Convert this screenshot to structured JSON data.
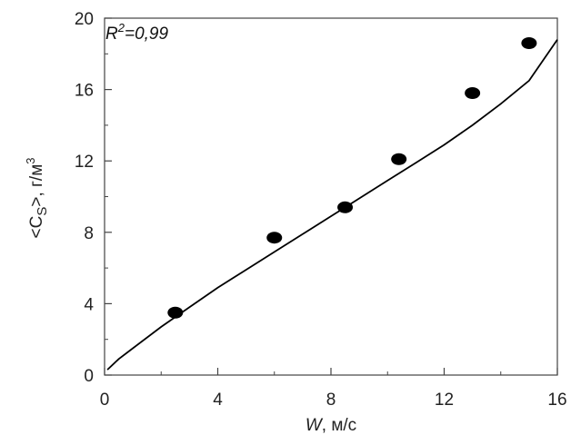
{
  "chart_data": {
    "type": "scatter",
    "title": "",
    "x_ticks": [
      "0",
      "4",
      "8",
      "12",
      "16"
    ],
    "y_ticks": [
      "0",
      "4",
      "8",
      "12",
      "16",
      "20"
    ],
    "xlim": [
      0,
      16
    ],
    "ylim": [
      0,
      20
    ],
    "grid": false,
    "xlabel": {
      "var": "W",
      "unit": ", м/с"
    },
    "ylabel": {
      "var": "<C",
      "sub": "S",
      "mid": ">, г/м",
      "sup": "3"
    },
    "annotation": {
      "var": "R",
      "sup": "2",
      "value": "=0,99"
    },
    "points": [
      {
        "x": 2.5,
        "y": 3.5
      },
      {
        "x": 6.0,
        "y": 7.7
      },
      {
        "x": 8.5,
        "y": 9.4
      },
      {
        "x": 10.4,
        "y": 12.1
      },
      {
        "x": 13.0,
        "y": 15.8
      },
      {
        "x": 15.0,
        "y": 18.6
      }
    ],
    "trendline": {
      "type": "power",
      "x": [
        0.1,
        0.5,
        1,
        2,
        3,
        4,
        5,
        6,
        7,
        8,
        9,
        10,
        11,
        12,
        13,
        14,
        15,
        16
      ],
      "y": [
        0.3,
        0.9,
        1.5,
        2.7,
        3.8,
        4.9,
        5.9,
        6.9,
        7.9,
        8.9,
        9.9,
        10.9,
        11.9,
        12.9,
        14.0,
        15.2,
        16.5,
        18.8
      ]
    },
    "colors": {
      "marker": "#000000",
      "line": "#000000",
      "axis": "#444444"
    }
  }
}
